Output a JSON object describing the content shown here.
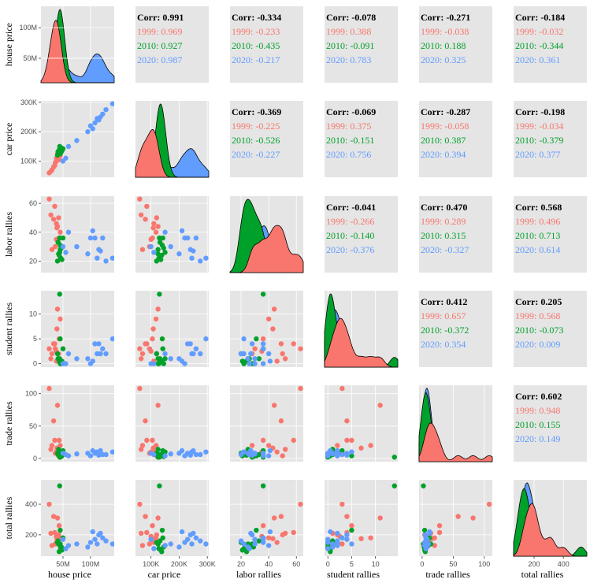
{
  "chart_data": {
    "type": "scatter-matrix",
    "variables": [
      "house price",
      "car price",
      "labor rallies",
      "student rallies",
      "trade rallies",
      "total rallies"
    ],
    "groups": [
      "1999",
      "2010",
      "2020"
    ],
    "group_colors": {
      "1999": "#F8766D",
      "2010": "#00A12A",
      "2020": "#619CFF"
    },
    "ticks": [
      {
        "values": [
          50,
          100
        ],
        "labels": [
          "50M",
          "100M"
        ]
      },
      {
        "values": [
          100,
          200,
          300
        ],
        "labels": [
          "100K",
          "200K",
          "300K"
        ]
      },
      {
        "values": [
          20,
          40,
          60
        ],
        "labels": [
          "20",
          "40",
          "60"
        ]
      },
      {
        "values": [
          0,
          5,
          10
        ],
        "labels": [
          "0",
          "5",
          "10"
        ]
      },
      {
        "values": [
          0,
          50,
          100
        ],
        "labels": [
          "0",
          "50",
          "100"
        ]
      },
      {
        "values": [
          200,
          400
        ],
        "labels": [
          "200",
          "400"
        ]
      }
    ],
    "ranges": [
      [
        10,
        143
      ],
      [
        45,
        305
      ],
      [
        12,
        65
      ],
      [
        -0.7,
        14.7
      ],
      [
        -5,
        113
      ],
      [
        60,
        560
      ]
    ],
    "ylabel_ticks_diag_first": {
      "values": [
        50,
        100
      ],
      "labels": [
        "50M",
        "100M"
      ],
      "range": [
        10,
        135
      ]
    },
    "data": {
      "1999": [
        [
          25,
          60,
          63,
          3.0,
          108,
          400
        ],
        [
          30,
          70,
          28,
          2.0,
          20,
          130
        ],
        [
          28,
          65,
          52,
          1.0,
          14,
          210
        ],
        [
          35,
          85,
          58,
          4.0,
          28,
          215
        ],
        [
          38,
          110,
          46,
          0.5,
          10,
          150
        ],
        [
          42,
          120,
          50,
          2.0,
          4,
          200
        ],
        [
          40,
          125,
          44,
          11.0,
          82,
          310
        ],
        [
          45,
          118,
          40,
          9.0,
          20,
          180
        ],
        [
          43,
          105,
          36,
          5.0,
          28,
          260
        ],
        [
          36,
          95,
          30,
          3.0,
          8,
          140
        ],
        [
          33,
          80,
          49,
          4.0,
          58,
          320
        ],
        [
          38,
          100,
          35,
          2.5,
          10,
          190
        ],
        [
          39,
          108,
          43,
          7.0,
          16,
          175
        ]
      ],
      "2010": [
        [
          44,
          130,
          36,
          14.0,
          2,
          520
        ],
        [
          45,
          140,
          31,
          5.0,
          4,
          230
        ],
        [
          42,
          125,
          25,
          1.0,
          14,
          140
        ],
        [
          46,
          128,
          22,
          0.0,
          6,
          110
        ],
        [
          48,
          135,
          21,
          0.5,
          4,
          100
        ],
        [
          40,
          120,
          20,
          2.0,
          8,
          150
        ],
        [
          47,
          145,
          29,
          0.0,
          3,
          120
        ],
        [
          44,
          150,
          26,
          1.0,
          10,
          130
        ],
        [
          43,
          138,
          24,
          0.5,
          5,
          90
        ],
        [
          50,
          142,
          36,
          3.0,
          12,
          180
        ],
        [
          41,
          132,
          33,
          1.0,
          6,
          160
        ],
        [
          45,
          125,
          28,
          0.0,
          2,
          140
        ]
      ],
      "2020": [
        [
          108,
          230,
          36,
          4.0,
          8,
          170
        ],
        [
          112,
          245,
          22,
          2.0,
          10,
          140
        ],
        [
          118,
          250,
          27,
          2.0,
          12,
          210
        ],
        [
          122,
          260,
          36,
          3.0,
          6,
          180
        ],
        [
          100,
          220,
          36,
          0.0,
          4,
          150
        ],
        [
          95,
          200,
          25,
          1.0,
          8,
          120
        ],
        [
          128,
          275,
          20,
          2.0,
          6,
          160
        ],
        [
          140,
          295,
          22,
          5.0,
          10,
          140
        ],
        [
          104,
          210,
          41,
          0.5,
          12,
          220
        ],
        [
          60,
          150,
          40,
          2.0,
          4,
          130
        ],
        [
          50,
          100,
          30,
          0.0,
          8,
          170
        ],
        [
          55,
          110,
          26,
          0.0,
          6,
          110
        ],
        [
          75,
          170,
          30,
          1.0,
          7,
          140
        ],
        [
          115,
          240,
          28,
          4.0,
          5,
          200
        ]
      ]
    },
    "correlations": [
      [
        null,
        {
          "overall": "Corr: 0.991",
          "g1999": "1999: 0.969",
          "g2010": "2010: 0.927",
          "g2020": "2020: 0.987"
        },
        {
          "overall": "Corr: -0.334",
          "g1999": "1999: -0.233",
          "g2010": "2010: -0.435",
          "g2020": "2020: -0.217"
        },
        {
          "overall": "Corr: -0.078",
          "g1999": "1999: 0.388",
          "g2010": "2010: -0.091",
          "g2020": "2020: 0.783"
        },
        {
          "overall": "Corr: -0.271",
          "g1999": "1999: -0.038",
          "g2010": "2010: 0.188",
          "g2020": "2020: 0.325"
        },
        {
          "overall": "Corr: -0.184",
          "g1999": "1999: -0.032",
          "g2010": "2010: -0.344",
          "g2020": "2020: 0.361"
        }
      ],
      [
        null,
        null,
        {
          "overall": "Corr: -0.369",
          "g1999": "1999: -0.225",
          "g2010": "2010: -0.526",
          "g2020": "2020: -0.227"
        },
        {
          "overall": "Corr: -0.069",
          "g1999": "1999: 0.375",
          "g2010": "2010: -0.151",
          "g2020": "2020: 0.756"
        },
        {
          "overall": "Corr: -0.287",
          "g1999": "1999: -0.058",
          "g2010": "2010: 0.387",
          "g2020": "2020: 0.394"
        },
        {
          "overall": "Corr: -0.198",
          "g1999": "1999: -0.034",
          "g2010": "2010: -0.379",
          "g2020": "2020: 0.377"
        }
      ],
      [
        null,
        null,
        null,
        {
          "overall": "Corr: -0.041",
          "g1999": "1999: -0.266",
          "g2010": "2010: -0.140",
          "g2020": "2020: -0.376"
        },
        {
          "overall": "Corr: 0.470",
          "g1999": "1999: 0.289",
          "g2010": "2010: 0.315",
          "g2020": "2020: -0.327"
        },
        {
          "overall": "Corr: 0.568",
          "g1999": "1999: 0.496",
          "g2010": "2010: 0.713",
          "g2020": "2020: 0.614"
        }
      ],
      [
        null,
        null,
        null,
        null,
        {
          "overall": "Corr: 0.412",
          "g1999": "1999: 0.657",
          "g2010": "2010: -0.372",
          "g2020": "2020: 0.354"
        },
        {
          "overall": "Corr: 0.205",
          "g1999": "1999: 0.568",
          "g2010": "2010: -0.073",
          "g2020": "2020: 0.009"
        }
      ],
      [
        null,
        null,
        null,
        null,
        null,
        {
          "overall": "Corr: 0.602",
          "g1999": "1999: 0.948",
          "g2010": "2010: 0.155",
          "g2020": "2020: 0.149"
        }
      ],
      [
        null,
        null,
        null,
        null,
        null,
        null
      ]
    ]
  }
}
